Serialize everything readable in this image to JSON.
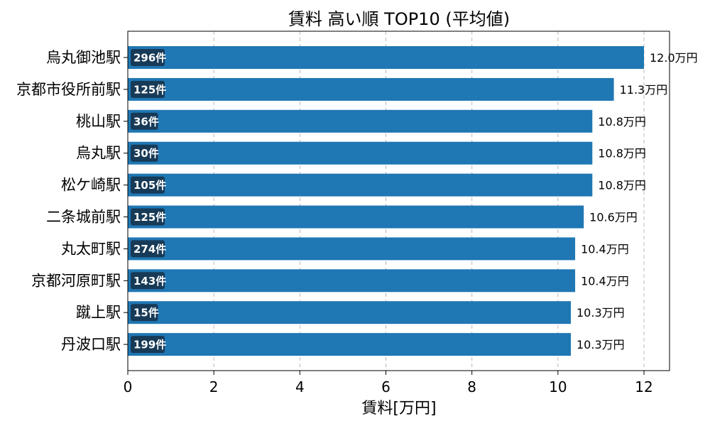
{
  "chart_data": {
    "type": "bar",
    "orientation": "horizontal",
    "title": "賃料 高い順 TOP10 (平均値)",
    "xlabel": "賃料[万円]",
    "ylabel": "",
    "xlim": [
      0,
      12.6
    ],
    "xticks": [
      0,
      2,
      4,
      6,
      8,
      10,
      12
    ],
    "grid": "x-dashed",
    "categories": [
      "烏丸御池駅",
      "京都市役所前駅",
      "桃山駅",
      "烏丸駅",
      "松ケ崎駅",
      "二条城前駅",
      "丸太町駅",
      "京都河原町駅",
      "蹴上駅",
      "丹波口駅"
    ],
    "values": [
      12.0,
      11.3,
      10.8,
      10.8,
      10.8,
      10.6,
      10.4,
      10.4,
      10.3,
      10.3
    ],
    "value_labels": [
      "12.0万円",
      "11.3万円",
      "10.8万円",
      "10.8万円",
      "10.8万円",
      "10.6万円",
      "10.4万円",
      "10.4万円",
      "10.3万円",
      "10.3万円"
    ],
    "counts": [
      "296件",
      "125件",
      "36件",
      "30件",
      "105件",
      "125件",
      "274件",
      "143件",
      "15件",
      "199件"
    ],
    "colors": {
      "bar": "#1f77b4",
      "badge": "#173a57"
    }
  }
}
